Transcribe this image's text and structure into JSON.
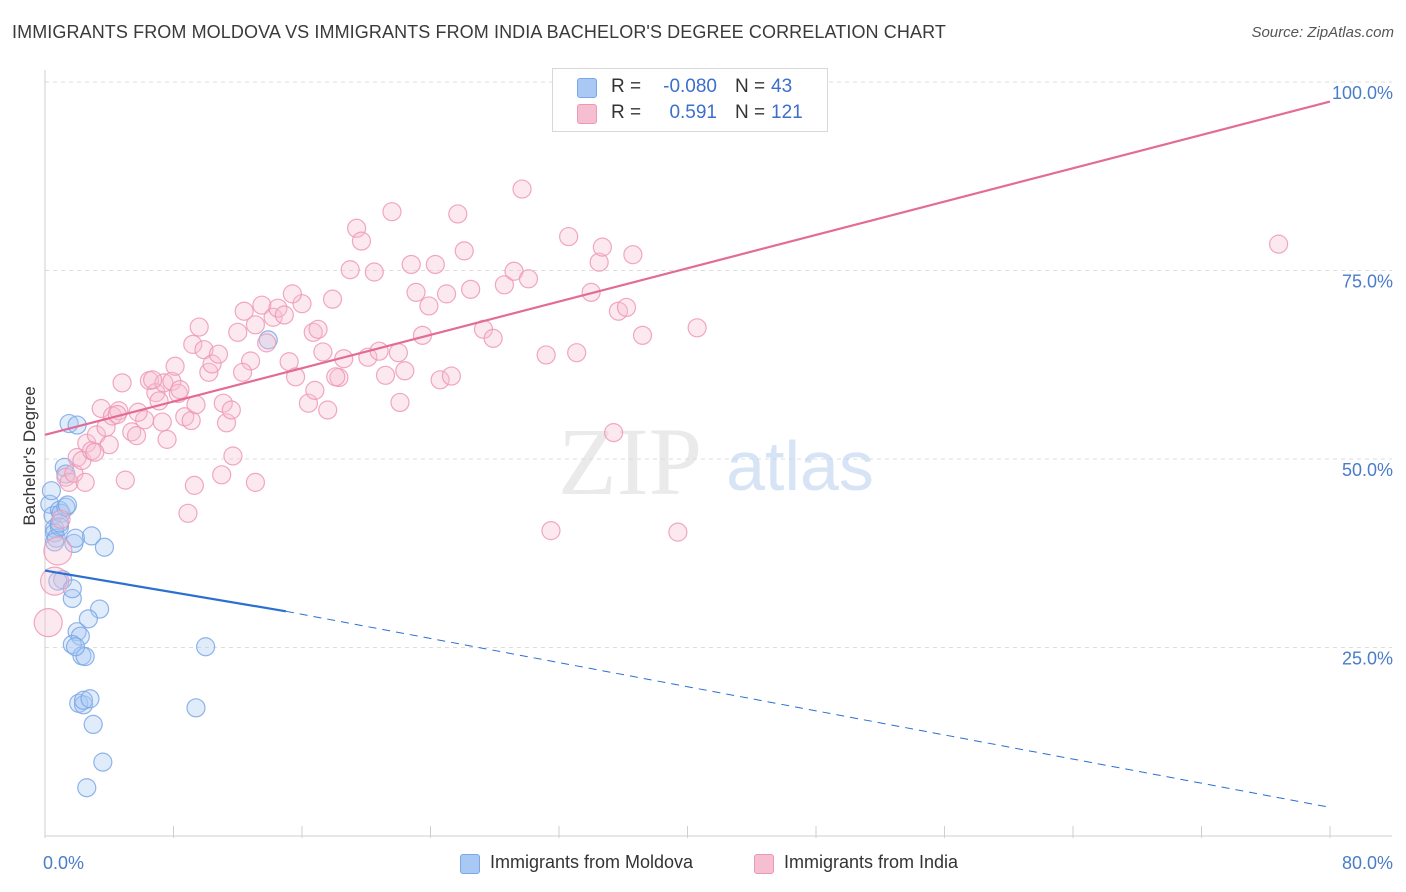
{
  "title": "IMMIGRANTS FROM MOLDOVA VS IMMIGRANTS FROM INDIA BACHELOR'S DEGREE CORRELATION CHART",
  "source": "Source: ZipAtlas.com",
  "legend": {
    "r_label": "R =",
    "n_label": "N =",
    "moldova": {
      "r": "-0.080",
      "n": "43"
    },
    "india": {
      "r": "0.591",
      "n": "121"
    }
  },
  "watermark": {
    "zip": "ZIP",
    "atlas": "atlas"
  },
  "chart_data": {
    "type": "scatter",
    "title": "IMMIGRANTS FROM MOLDOVA VS IMMIGRANTS FROM INDIA BACHELOR'S DEGREE CORRELATION CHART",
    "xlabel": "",
    "ylabel": "Bachelor's Degree",
    "xlim": [
      0,
      80
    ],
    "ylim": [
      0,
      100
    ],
    "x_tick_labels": [
      "0.0%",
      "80.0%"
    ],
    "y_ticks": [
      25,
      50,
      75,
      100
    ],
    "y_tick_labels": [
      "25.0%",
      "50.0%",
      "75.0%",
      "100.0%"
    ],
    "grid": true,
    "legend_position": "bottom",
    "colors": {
      "moldova": "#7aa7e6",
      "india": "#ee98b5",
      "moldova_line": "#2a6fd1",
      "india_line": "#e36b97",
      "tick_label": "#4a7cc9"
    },
    "series": [
      {
        "name": "Immigrants from Moldova",
        "r": -0.08,
        "n": 43,
        "trend": {
          "x0": 0,
          "y0": 35.2,
          "x1": 15,
          "y1": 29.8,
          "dash_to_x": 80,
          "dash_to_y": 3.8
        },
        "points": [
          [
            0.3,
            44.0
          ],
          [
            0.5,
            42.5
          ],
          [
            0.6,
            40.8
          ],
          [
            0.6,
            40.2
          ],
          [
            0.7,
            39.5
          ],
          [
            0.4,
            45.8
          ],
          [
            0.9,
            43.2
          ],
          [
            1.0,
            42.8
          ],
          [
            1.2,
            48.9
          ],
          [
            1.3,
            48.0
          ],
          [
            1.3,
            43.6
          ],
          [
            1.5,
            54.7
          ],
          [
            1.1,
            34.0
          ],
          [
            0.8,
            33.8
          ],
          [
            1.7,
            31.5
          ],
          [
            1.7,
            32.8
          ],
          [
            1.8,
            38.8
          ],
          [
            1.9,
            39.5
          ],
          [
            2.0,
            54.5
          ],
          [
            2.9,
            39.8
          ],
          [
            3.7,
            38.3
          ],
          [
            3.4,
            30.1
          ],
          [
            2.7,
            28.8
          ],
          [
            2.0,
            27.1
          ],
          [
            2.2,
            26.5
          ],
          [
            1.7,
            25.4
          ],
          [
            2.3,
            23.9
          ],
          [
            2.5,
            23.8
          ],
          [
            1.9,
            25.1
          ],
          [
            2.1,
            17.6
          ],
          [
            2.4,
            17.4
          ],
          [
            2.4,
            18.0
          ],
          [
            2.8,
            18.2
          ],
          [
            3.0,
            14.8
          ],
          [
            3.6,
            9.8
          ],
          [
            2.6,
            6.4
          ],
          [
            10.0,
            25.1
          ],
          [
            9.4,
            17.0
          ],
          [
            13.9,
            65.8
          ],
          [
            0.9,
            41.0
          ],
          [
            1.4,
            43.9
          ],
          [
            0.6,
            39.0
          ],
          [
            0.9,
            41.5
          ]
        ]
      },
      {
        "name": "Immigrants from India",
        "r": 0.591,
        "n": 121,
        "trend": {
          "x0": 0,
          "y0": 53.2,
          "x1": 80,
          "y1": 97.4
        },
        "points": [
          [
            0.2,
            28.3
          ],
          [
            0.6,
            33.8
          ],
          [
            0.8,
            37.8
          ],
          [
            1.0,
            42.0
          ],
          [
            1.3,
            47.6
          ],
          [
            1.5,
            46.9
          ],
          [
            1.8,
            48.1
          ],
          [
            2.0,
            50.2
          ],
          [
            2.3,
            49.8
          ],
          [
            2.6,
            52.1
          ],
          [
            2.9,
            51.1
          ],
          [
            3.2,
            53.2
          ],
          [
            3.5,
            56.7
          ],
          [
            3.8,
            54.2
          ],
          [
            4.2,
            55.7
          ],
          [
            4.6,
            56.4
          ],
          [
            4.0,
            51.9
          ],
          [
            4.8,
            60.1
          ],
          [
            5.0,
            47.2
          ],
          [
            5.4,
            53.6
          ],
          [
            5.7,
            53.1
          ],
          [
            6.2,
            55.2
          ],
          [
            6.5,
            60.4
          ],
          [
            6.9,
            58.8
          ],
          [
            7.1,
            57.7
          ],
          [
            7.4,
            60.1
          ],
          [
            7.6,
            52.6
          ],
          [
            7.9,
            60.3
          ],
          [
            8.1,
            62.3
          ],
          [
            8.3,
            58.7
          ],
          [
            8.7,
            55.6
          ],
          [
            9.1,
            55.1
          ],
          [
            9.4,
            57.2
          ],
          [
            9.6,
            67.5
          ],
          [
            9.2,
            65.2
          ],
          [
            9.9,
            64.5
          ],
          [
            10.2,
            61.5
          ],
          [
            10.4,
            62.6
          ],
          [
            10.8,
            63.9
          ],
          [
            11.1,
            57.4
          ],
          [
            11.3,
            54.8
          ],
          [
            11.6,
            56.5
          ],
          [
            12.0,
            66.8
          ],
          [
            12.4,
            69.6
          ],
          [
            12.8,
            63.0
          ],
          [
            13.1,
            67.8
          ],
          [
            13.5,
            70.4
          ],
          [
            13.8,
            65.4
          ],
          [
            14.2,
            68.8
          ],
          [
            14.5,
            70.0
          ],
          [
            14.9,
            69.1
          ],
          [
            15.2,
            62.9
          ],
          [
            15.6,
            60.9
          ],
          [
            16.0,
            70.6
          ],
          [
            16.4,
            57.4
          ],
          [
            16.7,
            66.8
          ],
          [
            17.0,
            67.2
          ],
          [
            17.3,
            64.2
          ],
          [
            17.6,
            56.5
          ],
          [
            17.9,
            71.2
          ],
          [
            18.3,
            60.8
          ],
          [
            18.6,
            63.3
          ],
          [
            19.0,
            75.1
          ],
          [
            19.4,
            80.6
          ],
          [
            19.7,
            78.9
          ],
          [
            20.1,
            63.5
          ],
          [
            20.5,
            74.8
          ],
          [
            20.8,
            64.3
          ],
          [
            21.2,
            61.1
          ],
          [
            21.6,
            82.8
          ],
          [
            22.0,
            64.1
          ],
          [
            22.4,
            61.7
          ],
          [
            22.8,
            75.8
          ],
          [
            23.1,
            72.1
          ],
          [
            23.5,
            66.4
          ],
          [
            23.9,
            70.3
          ],
          [
            24.3,
            75.8
          ],
          [
            24.6,
            60.5
          ],
          [
            25.0,
            71.9
          ],
          [
            25.3,
            61.0
          ],
          [
            25.7,
            82.5
          ],
          [
            26.1,
            77.6
          ],
          [
            26.5,
            72.5
          ],
          [
            27.3,
            67.2
          ],
          [
            27.9,
            66.0
          ],
          [
            28.6,
            73.1
          ],
          [
            29.2,
            74.9
          ],
          [
            29.7,
            85.8
          ],
          [
            30.1,
            73.9
          ],
          [
            31.5,
            40.5
          ],
          [
            31.2,
            63.8
          ],
          [
            32.6,
            79.5
          ],
          [
            33.1,
            64.1
          ],
          [
            34.0,
            72.1
          ],
          [
            34.5,
            76.1
          ],
          [
            34.7,
            78.1
          ],
          [
            35.4,
            53.5
          ],
          [
            35.7,
            69.6
          ],
          [
            36.2,
            70.1
          ],
          [
            36.6,
            77.1
          ],
          [
            37.2,
            66.4
          ],
          [
            39.4,
            40.3
          ],
          [
            40.6,
            67.4
          ],
          [
            3.1,
            50.9
          ],
          [
            6.7,
            60.5
          ],
          [
            8.4,
            59.2
          ],
          [
            11.0,
            47.9
          ],
          [
            11.7,
            50.4
          ],
          [
            13.1,
            46.9
          ],
          [
            9.3,
            46.5
          ],
          [
            8.9,
            42.8
          ],
          [
            7.3,
            54.9
          ],
          [
            5.8,
            56.2
          ],
          [
            4.5,
            55.9
          ],
          [
            2.5,
            46.9
          ],
          [
            12.3,
            61.5
          ],
          [
            18.1,
            60.9
          ],
          [
            22.1,
            57.5
          ],
          [
            76.8,
            78.5
          ],
          [
            15.4,
            71.9
          ],
          [
            16.8,
            59.1
          ]
        ]
      }
    ]
  },
  "bottom_legend": {
    "moldova": "Immigrants from Moldova",
    "india": "Immigrants from India"
  }
}
